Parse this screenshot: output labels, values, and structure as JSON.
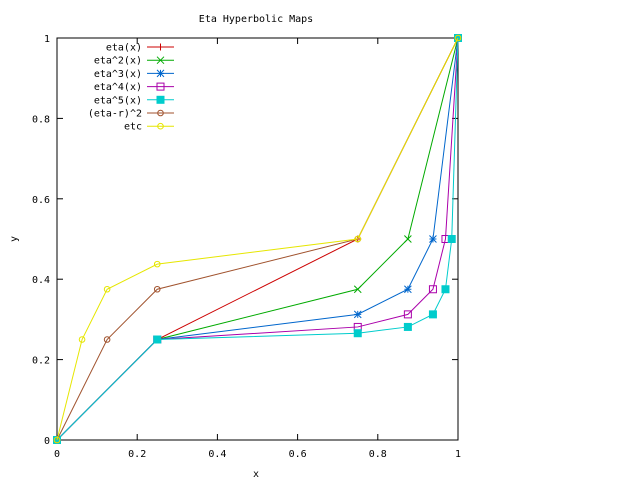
{
  "chart_data": {
    "type": "line",
    "title": "Eta Hyperbolic Maps",
    "xlabel": "x",
    "ylabel": "y",
    "xlim": [
      0,
      1
    ],
    "ylim": [
      0,
      1
    ],
    "xticks": [
      0,
      0.2,
      0.4,
      0.6,
      0.8,
      1
    ],
    "yticks": [
      0,
      0.2,
      0.4,
      0.6,
      0.8,
      1
    ],
    "xtick_labels": [
      "0",
      "0.2",
      "0.4",
      "0.6",
      "0.8",
      "1"
    ],
    "ytick_labels": [
      "0",
      "0.2",
      "0.4",
      "0.6",
      "0.8",
      "1"
    ],
    "grid": false,
    "legend_position": "top-left",
    "series": [
      {
        "name": "eta(x)",
        "color": "#cc0000",
        "marker": "plus",
        "x": [
          0,
          0.25,
          0.75,
          1
        ],
        "y": [
          0,
          0.25,
          0.5,
          1
        ]
      },
      {
        "name": "eta^2(x)",
        "color": "#00aa00",
        "marker": "cross",
        "x": [
          0,
          0.25,
          0.75,
          0.875,
          1
        ],
        "y": [
          0,
          0.25,
          0.375,
          0.5,
          1
        ]
      },
      {
        "name": "eta^3(x)",
        "color": "#0066cc",
        "marker": "star",
        "x": [
          0,
          0.25,
          0.75,
          0.875,
          0.9375,
          1
        ],
        "y": [
          0,
          0.25,
          0.3125,
          0.375,
          0.5,
          1
        ]
      },
      {
        "name": "eta^4(x)",
        "color": "#aa00aa",
        "marker": "square",
        "x": [
          0,
          0.25,
          0.75,
          0.875,
          0.9375,
          0.96875,
          1
        ],
        "y": [
          0,
          0.25,
          0.28125,
          0.3125,
          0.375,
          0.5,
          1
        ]
      },
      {
        "name": "eta^5(x)",
        "color": "#00cccc",
        "marker": "filled-square",
        "x": [
          0,
          0.25,
          0.75,
          0.875,
          0.9375,
          0.96875,
          0.984375,
          1
        ],
        "y": [
          0,
          0.25,
          0.265625,
          0.28125,
          0.3125,
          0.375,
          0.5,
          1
        ]
      },
      {
        "name": "(eta-r)^2",
        "color": "#a0522d",
        "marker": "circle",
        "x": [
          0,
          0.125,
          0.25,
          0.75,
          1
        ],
        "y": [
          0,
          0.25,
          0.375,
          0.5,
          1
        ]
      },
      {
        "name": "etc",
        "color": "#e6e600",
        "marker": "circle",
        "x": [
          0,
          0.0625,
          0.125,
          0.25,
          0.75,
          1
        ],
        "y": [
          0,
          0.25,
          0.375,
          0.4375,
          0.5,
          1
        ]
      }
    ]
  }
}
